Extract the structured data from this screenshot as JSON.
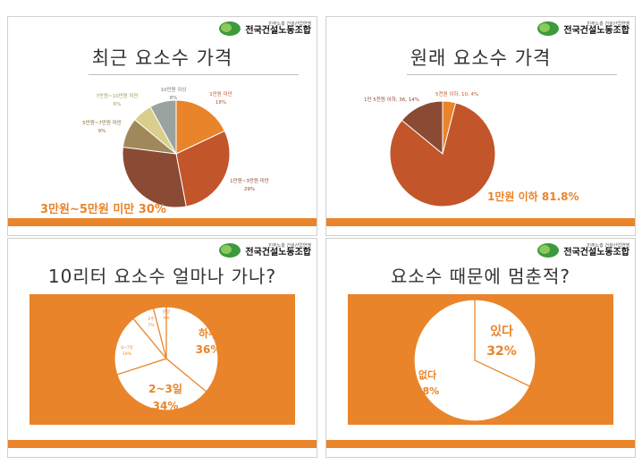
{
  "logo": {
    "sub": "민주노총 건설산업연맹",
    "main": "전국건설노동조합"
  },
  "colors": {
    "accent": "#e9842a",
    "rust": "#c2552a"
  },
  "chart_data": [
    {
      "type": "pie",
      "title": "최근 요소수 가격",
      "slices": [
        {
          "label": "1만원 미만",
          "pct_label": "18%",
          "value": 18,
          "color": "#e9842a"
        },
        {
          "label": "1만원~3만원 미만",
          "pct_label": "29%",
          "value": 29,
          "color": "#c2552a"
        },
        {
          "label": "3만원~5만원 미만",
          "pct_label": "30%",
          "value": 30,
          "color": "#8b4a33"
        },
        {
          "label": "5만원~7만원 미만",
          "pct_label": "9%",
          "value": 9,
          "color": "#a0885a"
        },
        {
          "label": "7만원~10만원 미만",
          "pct_label": "6%",
          "value": 6,
          "color": "#d9cf8a"
        },
        {
          "label": "10만원 이상",
          "pct_label": "8%",
          "value": 8,
          "color": "#9aa3a0"
        }
      ],
      "callout": "3만원~5만원 미만 30%"
    },
    {
      "type": "pie",
      "title": "원래 요소수 가격",
      "slices": [
        {
          "label": "5천원 이하",
          "text": "5천원 이하, 10, 4%",
          "value": 4,
          "color": "#e9842a"
        },
        {
          "label": "1만원 이하",
          "text": "1만원 이하 81.8%",
          "value": 81.8,
          "color": "#c2552a"
        },
        {
          "label": "1만 5천원 이하",
          "text": "1만 5천원 이하, 36, 14%",
          "value": 14,
          "color": "#8b4a33"
        }
      ]
    },
    {
      "type": "pie",
      "title": "10리터 요소수 얼마나 가나?",
      "slices": [
        {
          "label": "하루",
          "pct_label": "36%",
          "value": 36
        },
        {
          "label": "2~3일",
          "pct_label": "34%",
          "value": 34
        },
        {
          "label": "4~7일",
          "pct_label": "19%",
          "value": 19
        },
        {
          "label": "2주",
          "pct_label": "7%",
          "value": 7
        },
        {
          "label": "한달",
          "pct_label": "4%",
          "value": 4
        }
      ]
    },
    {
      "type": "pie",
      "title": "요소수 때문에 멈춘적?",
      "slices": [
        {
          "label": "있다",
          "pct_label": "32%",
          "value": 32
        },
        {
          "label": "없다",
          "pct_label": "68%",
          "value": 68
        }
      ]
    }
  ]
}
